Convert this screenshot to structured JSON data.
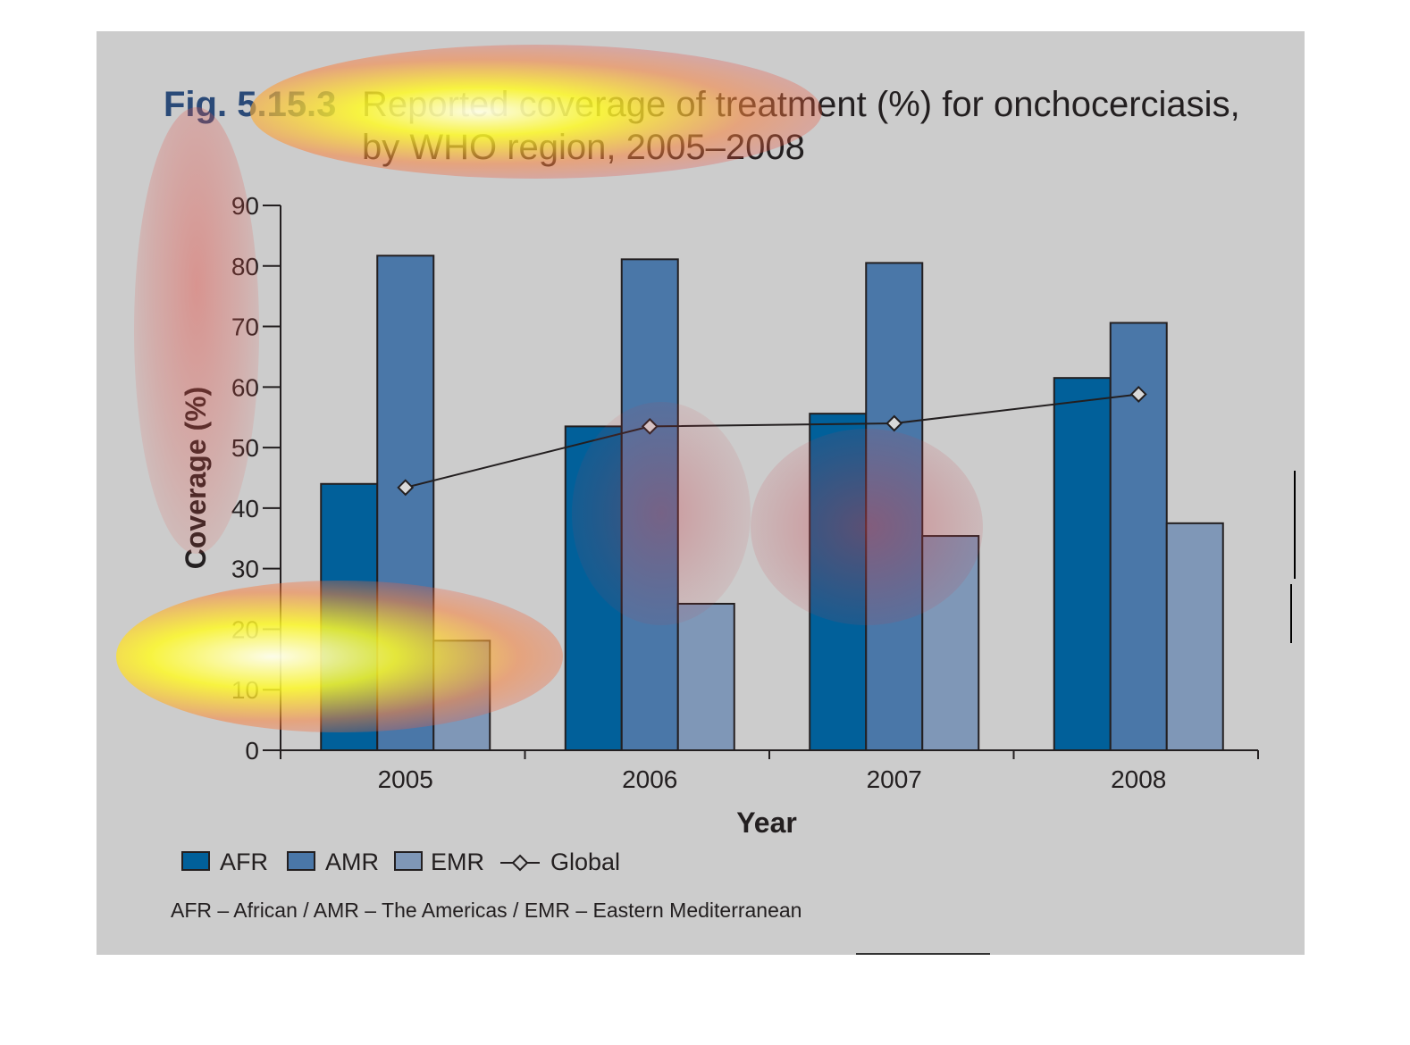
{
  "figure": {
    "number": "Fig. 5.15.3",
    "title_line1": "Reported coverage of treatment (%) for onchocerciasis,",
    "title_line2": "by WHO region, 2005–2008",
    "footnote": "AFR – African / AMR – The Americas / EMR – Eastern Mediterranean"
  },
  "colors": {
    "background": "#cccccc",
    "AFR": "#01609a",
    "AMR": "#4a77a8",
    "EMR": "#7f97b7",
    "global_line": "#231f20",
    "global_marker": "#d9d9d9"
  },
  "chart_data": {
    "type": "bar",
    "title": "Reported coverage of treatment (%) for onchocerciasis, by WHO region, 2005–2008",
    "xlabel": "Year",
    "ylabel": "Coverage (%)",
    "ylim": [
      0,
      90
    ],
    "yticks": [
      0,
      10,
      20,
      30,
      40,
      50,
      60,
      70,
      80,
      90
    ],
    "categories": [
      "2005",
      "2006",
      "2007",
      "2008"
    ],
    "series": [
      {
        "name": "AFR",
        "kind": "bar",
        "values": [
          44.0,
          53.5,
          55.6,
          61.5
        ]
      },
      {
        "name": "AMR",
        "kind": "bar",
        "values": [
          81.7,
          81.1,
          80.5,
          70.6
        ]
      },
      {
        "name": "EMR",
        "kind": "bar",
        "values": [
          18.1,
          24.2,
          35.4,
          37.5
        ]
      },
      {
        "name": "Global",
        "kind": "line",
        "marker": "diamond",
        "values": [
          43.4,
          53.5,
          54.0,
          58.8
        ]
      }
    ],
    "grid": false,
    "legend": "bottom-left"
  }
}
